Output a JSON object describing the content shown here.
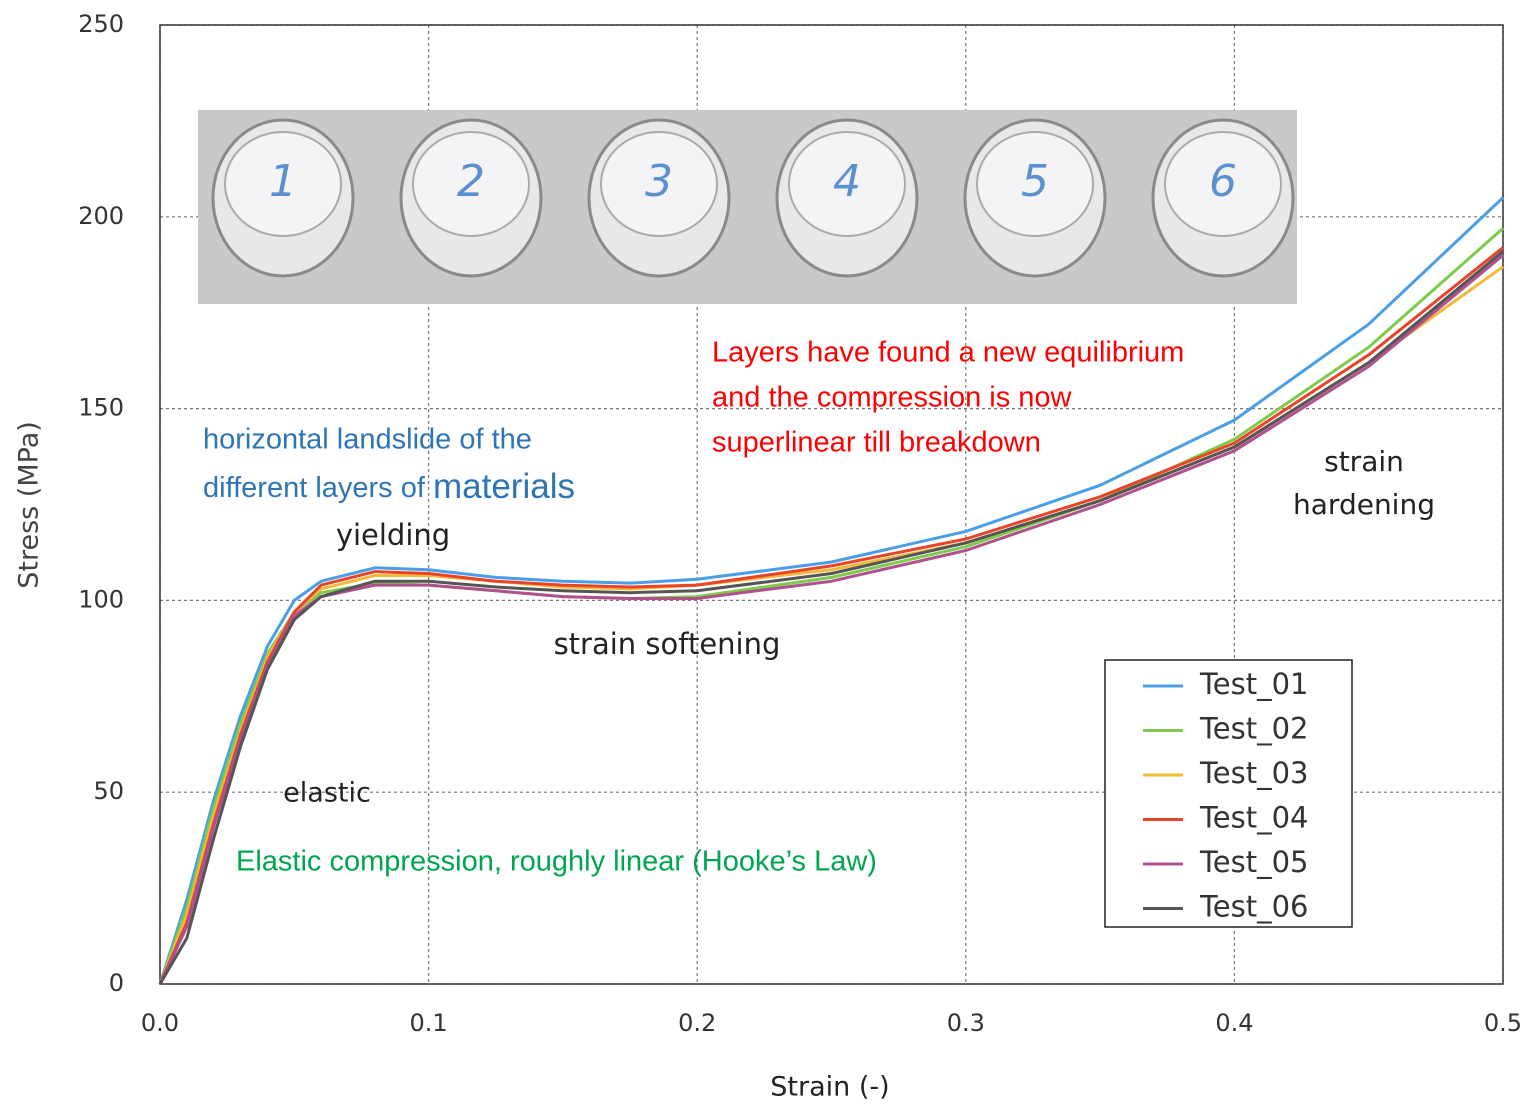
{
  "chart_data": {
    "type": "line",
    "x_label": "Strain (-)",
    "y_label": "Stress (MPa)",
    "x": [
      0,
      0.01,
      0.02,
      0.03,
      0.04,
      0.05,
      0.06,
      0.08,
      0.1,
      0.125,
      0.15,
      0.175,
      0.2,
      0.25,
      0.3,
      0.35,
      0.4,
      0.45,
      0.5
    ],
    "series": [
      {
        "name": "Test_01",
        "color": "#4a9ee8",
        "values": [
          0,
          22,
          48,
          70,
          88,
          100,
          105,
          108.5,
          108,
          106,
          105,
          104.5,
          105.5,
          110,
          118,
          130,
          147,
          172,
          205
        ]
      },
      {
        "name": "Test_02",
        "color": "#7ccc4a",
        "values": [
          0,
          20,
          46,
          68,
          86,
          97,
          102,
          104.5,
          104,
          102.5,
          101,
          100.5,
          101,
          106,
          114,
          126,
          142,
          166,
          197
        ]
      },
      {
        "name": "Test_03",
        "color": "#f5b93a",
        "values": [
          0,
          18,
          44,
          66,
          85,
          97,
          103,
          106.5,
          106.5,
          105,
          103.5,
          103,
          104,
          108,
          115,
          126,
          140,
          162,
          187
        ]
      },
      {
        "name": "Test_04",
        "color": "#e8442a",
        "values": [
          0,
          16,
          42,
          65,
          84,
          97,
          104,
          107.5,
          107,
          105,
          104,
          103.5,
          104,
          109,
          116,
          127,
          141,
          164,
          192
        ]
      },
      {
        "name": "Test_05",
        "color": "#b0508e",
        "values": [
          0,
          15,
          41,
          64,
          83,
          96,
          101,
          104,
          104,
          102.5,
          101,
          100.5,
          100.5,
          105,
          113,
          125,
          139,
          161,
          190
        ]
      },
      {
        "name": "Test_06",
        "color": "#555555",
        "values": [
          0,
          12,
          38,
          62,
          82,
          95,
          101,
          105,
          105,
          103.5,
          102.5,
          102,
          102.5,
          107,
          115,
          126,
          140,
          162,
          191
        ]
      }
    ],
    "xlim": [
      0,
      0.5
    ],
    "ylim": [
      0,
      250
    ],
    "xticks": [
      {
        "value": 0,
        "label": "0.0"
      },
      0.1,
      0.2,
      0.3,
      0.4,
      0.5
    ],
    "yticks": [
      0,
      50,
      100,
      150,
      200,
      250
    ],
    "grid": true,
    "legend": "lower right",
    "photo_labels": [
      "1",
      "2",
      "3",
      "4",
      "5",
      "6"
    ],
    "annotations": {
      "landslide": [
        "horizontal landslide of the",
        "different layers of ",
        "materials"
      ],
      "yielding": "yielding",
      "softening": "strain softening",
      "elastic": "elastic",
      "hooke": "Elastic compression, roughly linear (Hooke’s Law)",
      "equilibrium": [
        "Layers have found a new equilibrium",
        "and the compression is now",
        "superlinear till breakdown"
      ],
      "hardening": [
        "strain",
        "hardening"
      ]
    }
  }
}
